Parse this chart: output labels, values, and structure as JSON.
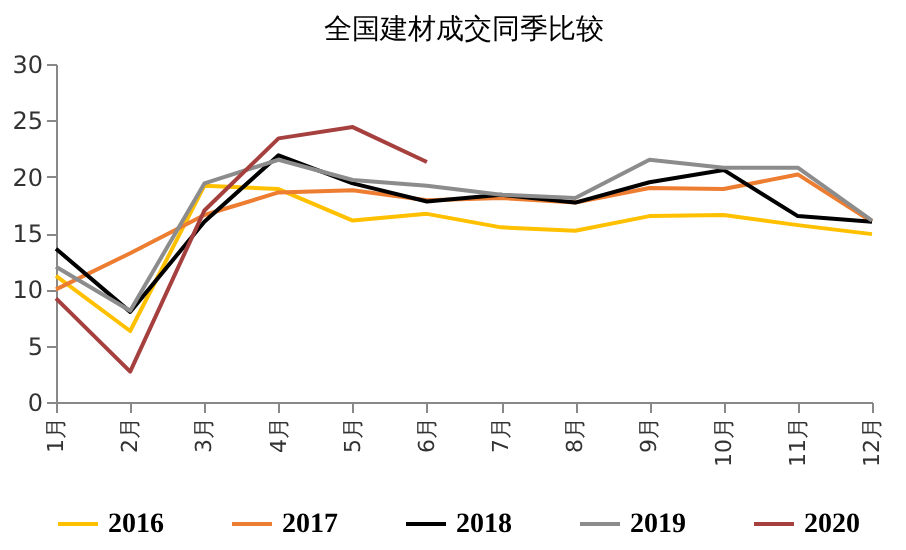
{
  "chart_data": {
    "type": "line",
    "title": "全国建材成交同季比较",
    "categories": [
      "1月",
      "2月",
      "3月",
      "4月",
      "5月",
      "6月",
      "7月",
      "8月",
      "9月",
      "10月",
      "11月",
      "12月"
    ],
    "series": [
      {
        "name": "2016",
        "color": "#ffc000",
        "values": [
          11.2,
          6.3,
          19.2,
          18.9,
          16.1,
          16.7,
          15.5,
          15.2,
          16.5,
          16.6,
          15.7,
          14.9
        ]
      },
      {
        "name": "2017",
        "color": "#ed7d31",
        "values": [
          10.0,
          13.2,
          16.6,
          18.6,
          18.8,
          17.9,
          18.1,
          17.7,
          19.0,
          18.9,
          20.2,
          16.0
        ]
      },
      {
        "name": "2018",
        "color": "#000000",
        "values": [
          13.6,
          8.0,
          16.0,
          21.9,
          19.4,
          17.8,
          18.4,
          17.7,
          19.5,
          20.6,
          16.5,
          16.0
        ]
      },
      {
        "name": "2019",
        "color": "#8c8c8c",
        "values": [
          12.0,
          8.1,
          19.4,
          21.5,
          19.7,
          19.2,
          18.4,
          18.1,
          21.5,
          20.8,
          20.8,
          16.1
        ]
      },
      {
        "name": "2020",
        "color": "#a5403f",
        "values": [
          9.2,
          2.7,
          17.0,
          23.4,
          24.4,
          21.3,
          null,
          null,
          null,
          null,
          null,
          null
        ]
      }
    ],
    "ylim": [
      0,
      30
    ],
    "yticks": [
      0,
      5,
      10,
      15,
      20,
      25,
      30
    ],
    "grid": false,
    "legend": "bottom",
    "marker": "none",
    "line_style": "solid"
  }
}
